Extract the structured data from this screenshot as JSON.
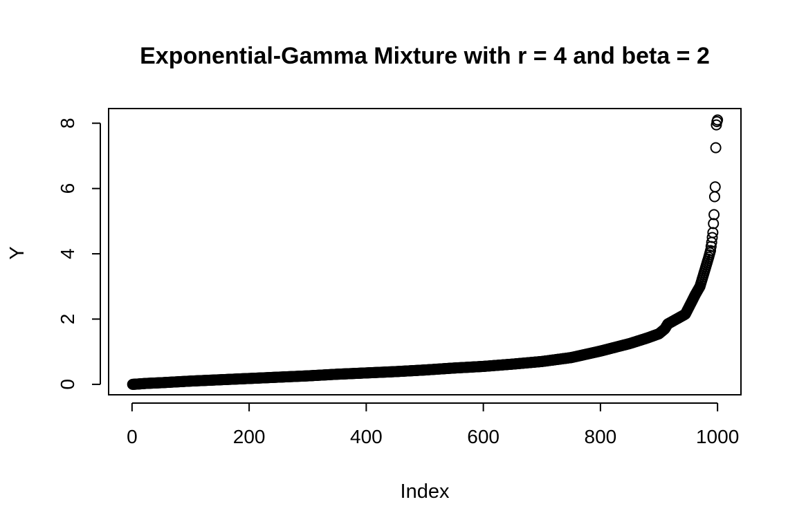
{
  "chart_data": {
    "type": "scatter",
    "title": "Exponential-Gamma Mixture with r = 4 and beta = 2",
    "xlabel": "Index",
    "ylabel": "Y",
    "xlim": [
      -40,
      1040
    ],
    "ylim": [
      -0.32,
      8.45
    ],
    "x_ticks": [
      0,
      200,
      400,
      600,
      800,
      1000
    ],
    "y_ticks": [
      0,
      2,
      4,
      6,
      8
    ],
    "grid": false,
    "legend": "none",
    "marker": "open-circle",
    "n_points": 1000,
    "series": [
      {
        "x": [
          1,
          10,
          25,
          50,
          100,
          150,
          200,
          250,
          300,
          350,
          400,
          450,
          500,
          550,
          600,
          650,
          700,
          750,
          800,
          850,
          880,
          900,
          910,
          915,
          930,
          945,
          955,
          962,
          970,
          975,
          980,
          985,
          988,
          990,
          992,
          994,
          995,
          996,
          997,
          998,
          999,
          1000
        ],
        "y": [
          0.0,
          0.01,
          0.03,
          0.05,
          0.1,
          0.14,
          0.18,
          0.22,
          0.26,
          0.31,
          0.35,
          0.39,
          0.44,
          0.5,
          0.55,
          0.62,
          0.7,
          0.82,
          1.02,
          1.25,
          1.42,
          1.55,
          1.7,
          1.85,
          2.0,
          2.15,
          2.5,
          2.75,
          3.0,
          3.3,
          3.6,
          3.9,
          4.1,
          4.35,
          4.65,
          5.2,
          5.75,
          6.05,
          7.25,
          7.95,
          8.05,
          8.1
        ]
      }
    ]
  }
}
